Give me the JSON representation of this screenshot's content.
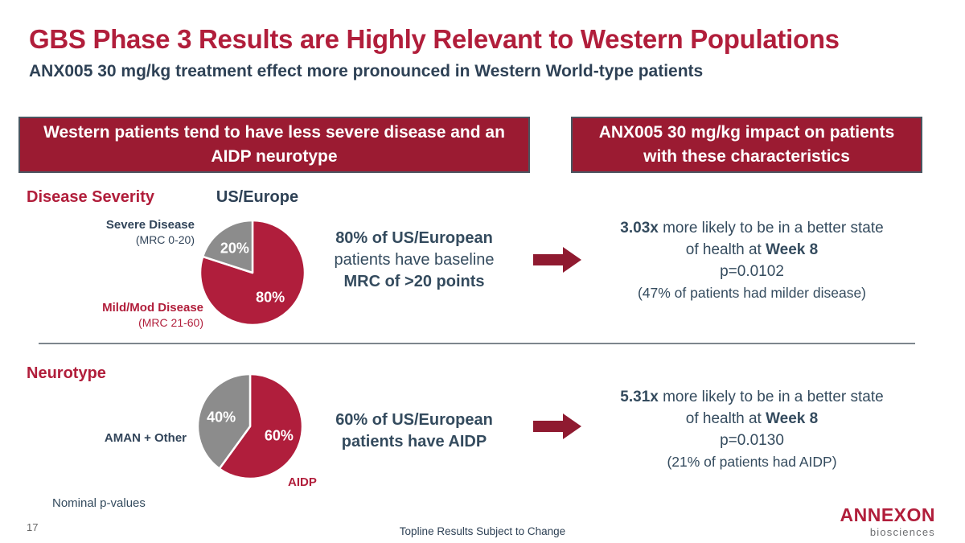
{
  "slide": {
    "title": "GBS Phase 3 Results are Highly Relevant to Western Populations",
    "subtitle": "ANX005 30 mg/kg treatment effect more pronounced in Western World-type patients",
    "footnote": "Nominal p-values",
    "page_number": "17",
    "footer_note": "Topline Results Subject to Change"
  },
  "headers": {
    "left": "Western patients tend to have less severe disease and an AIDP neurotype",
    "right": "ANX005 30 mg/kg impact on patients with these characteristics"
  },
  "severity": {
    "label": "Disease Severity",
    "pie_title": "US/Europe",
    "callout_severe_line1": "Severe Disease",
    "callout_severe_line2": "(MRC 0-20)",
    "callout_mild_line1": "Mild/Mod Disease",
    "callout_mild_line2": "(MRC 21-60)",
    "middle_line1": "80% of US/European",
    "middle_line2": "patients have baseline",
    "middle_line3": "MRC of >20 points",
    "result_mult": "3.03x",
    "result_line1_rest": " more likely to be in a better state",
    "result_line2_pre": "of health at ",
    "result_line2_bold": "Week 8",
    "result_pvalue": "p=0.0102",
    "result_note": "(47% of patients had milder disease)"
  },
  "neurotype": {
    "label": "Neurotype",
    "callout_left": "AMAN + Other",
    "callout_right": "AIDP",
    "middle_line1": "60% of US/European",
    "middle_line2": "patients have AIDP",
    "result_mult": "5.31x",
    "result_line1_rest": " more likely to be in a better state",
    "result_line2_pre": "of health at ",
    "result_line2_bold": "Week 8",
    "result_pvalue": "p=0.0130",
    "result_note": "(21% of patients had AIDP)"
  },
  "logo": {
    "name": "ANNEXON",
    "tagline": "biosciences"
  },
  "colors": {
    "brand_red": "#B11E3B",
    "header_box_red": "#9B1B32",
    "arrow_red": "#8F1A30",
    "navy": "#32455A",
    "slice_gray": "#8C8C8C"
  },
  "chart_data": [
    {
      "type": "pie",
      "title": "US/Europe — Disease Severity",
      "slices": [
        {
          "label": "Mild/Mod Disease (MRC 21-60)",
          "value": 80,
          "pct_label": "80%",
          "color": "#B01E3C"
        },
        {
          "label": "Severe Disease (MRC 0-20)",
          "value": 20,
          "pct_label": "20%",
          "color": "#8C8C8C"
        }
      ],
      "start_angle_deg": 0,
      "direction": "clockwise"
    },
    {
      "type": "pie",
      "title": "US/Europe — Neurotype",
      "slices": [
        {
          "label": "AIDP",
          "value": 60,
          "pct_label": "60%",
          "color": "#B01E3C"
        },
        {
          "label": "AMAN + Other",
          "value": 40,
          "pct_label": "40%",
          "color": "#8C8C8C"
        }
      ],
      "start_angle_deg": 0,
      "direction": "clockwise"
    }
  ]
}
